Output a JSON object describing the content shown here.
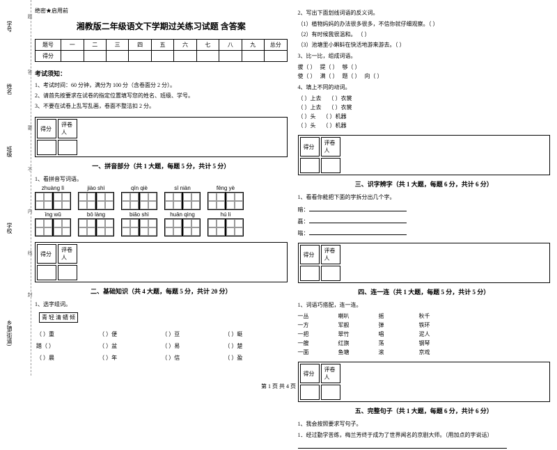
{
  "binding": {
    "labels": [
      "学号",
      "姓名",
      "班级",
      "学校",
      "乡镇(街道)"
    ],
    "cuts": [
      "题",
      "答",
      "要",
      "不",
      "内",
      "线",
      "封"
    ]
  },
  "secret": "绝密★启用前",
  "title": "湘教版二年级语文下学期过关练习试题 含答案",
  "score_header": [
    "题号",
    "一",
    "二",
    "三",
    "四",
    "五",
    "六",
    "七",
    "八",
    "九",
    "总分"
  ],
  "score_row": "得分",
  "notice_head": "考试须知：",
  "notices": [
    "1、考试时间：60 分钟，满分为 100 分（含卷面分 2 分）。",
    "2、请首先按要求在试卷的指定位置填写您的姓名、班级、学号。",
    "3、不要在试卷上乱写乱画，卷面不整洁扣 2 分。"
  ],
  "grader": {
    "c1": "得分",
    "c2": "评卷人"
  },
  "sections": {
    "s1": "一、拼音部分（共 1 大题，每题 5 分，共计 5 分）",
    "s2": "二、基础知识（共 4 大题，每题 5 分，共计 20 分）",
    "s3": "三、识字辨字（共 1 大题，每题 6 分，共计 6 分）",
    "s4": "四、连一连（共 1 大题，每题 5 分，共计 5 分）",
    "s5": "五、完整句子（共 1 大题，每题 6 分，共计 6 分）"
  },
  "q1_1": "1、看拼音写词语。",
  "pinyin": [
    "zhuàng lì",
    "jiào shì",
    "qīn qiè",
    "sī niàn",
    "fēng yè",
    "īng wǔ",
    "bō làng",
    "biǎo shì",
    "huān qìng",
    "hú li"
  ],
  "q2_1": "1、选字组词。",
  "char_opts": "青    轻   清   蜻   倾",
  "char_rows": [
    [
      "（    ）重",
      "（    ）便",
      "（    ）豆",
      "（    ）蜓"
    ],
    [
      "踏（    ）",
      "（    ）盆",
      "（    ）易",
      "（    ）楚"
    ],
    [
      "（    ）晨",
      "（    ）年",
      "（    ）信",
      "（    ）盈"
    ]
  ],
  "q2_2": "2、写出下面划线词语的反义词。",
  "q2_2_items": [
    "（1）植物妈妈的办法很多很多，不信你就仔细观察。（        ）",
    "（2）有时候我很温和。  （        ）",
    "（3）池塘里小蝌蚪在快活地游来游去。（        ）"
  ],
  "q2_3": "3、比一比，组成词语。",
  "q2_3_rows": [
    [
      "拔（        ）",
      "提（        ）",
      "够（        ）"
    ],
    [
      "使（        ）",
      "满（        ）",
      "题（        ）",
      "向（        ）"
    ]
  ],
  "q2_4": "4、填上不同的动词。",
  "q2_4_rows": [
    [
      "（        ）上去",
      "（        ）衣裳"
    ],
    [
      "（        ）上去",
      "（        ）衣裳"
    ],
    [
      "（        ）头",
      "（        ）机器"
    ],
    [
      "（        ）头",
      "（        ）机器"
    ]
  ],
  "q3_1": "1、看看你能把下面的字拆分出几个字。",
  "q3_1_items": [
    "暗：",
    "磊：",
    "嗡："
  ],
  "q4_1": "1、词语巧搭配，连一连。",
  "match": [
    [
      "一丛",
      "喇叭",
      "摇",
      "秋千"
    ],
    [
      "一方",
      "军舰",
      "弹",
      "铁环"
    ],
    [
      "一把",
      "翠竹",
      "唱",
      "泥人"
    ],
    [
      "一艘",
      "红旗",
      "荡",
      "钢琴"
    ],
    [
      "一面",
      "鱼塘",
      "滚",
      "京戏"
    ]
  ],
  "q5_1": "1、我会按照要求写句子。",
  "q5_1_sub": "1．经过勤学苦练，梅兰芳终于成为了世界闻名的京剧大师。（用加点的字说话）",
  "footer": "第 1 页 共 4 页"
}
